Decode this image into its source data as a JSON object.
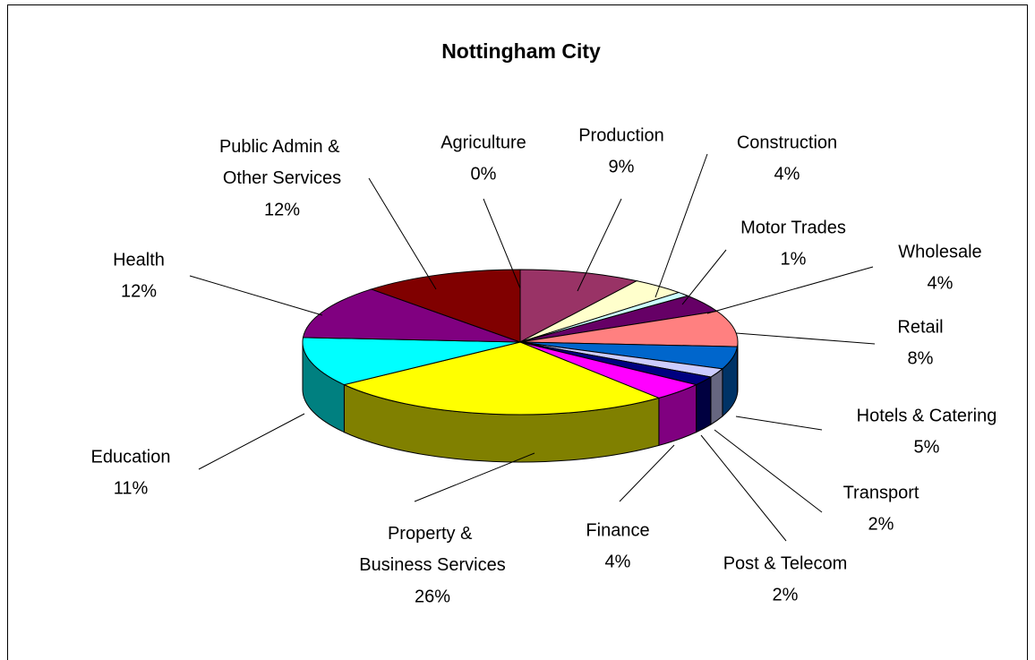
{
  "chart_data": {
    "type": "pie",
    "title": "Nottingham City",
    "categories": [
      "Agriculture",
      "Production",
      "Construction",
      "Motor Trades",
      "Wholesale",
      "Retail",
      "Hotels & Catering",
      "Transport",
      "Post & Telecom",
      "Finance",
      "Property & Business Services",
      "Education",
      "Health",
      "Public Admin & Other Services"
    ],
    "values": [
      0,
      9,
      4,
      1,
      4,
      8,
      5,
      2,
      2,
      4,
      26,
      11,
      12,
      12
    ],
    "value_labels": [
      "0%",
      "9%",
      "4%",
      "1%",
      "4%",
      "8%",
      "5%",
      "2%",
      "2%",
      "4%",
      "26%",
      "11%",
      "12%",
      "12%"
    ],
    "colors": [
      "#9999ff",
      "#993366",
      "#ffffcc",
      "#ccffff",
      "#660066",
      "#ff8080",
      "#0066cc",
      "#ccccff",
      "#000080",
      "#ff00ff",
      "#ffff00",
      "#00ffff",
      "#800080",
      "#800000"
    ]
  }
}
